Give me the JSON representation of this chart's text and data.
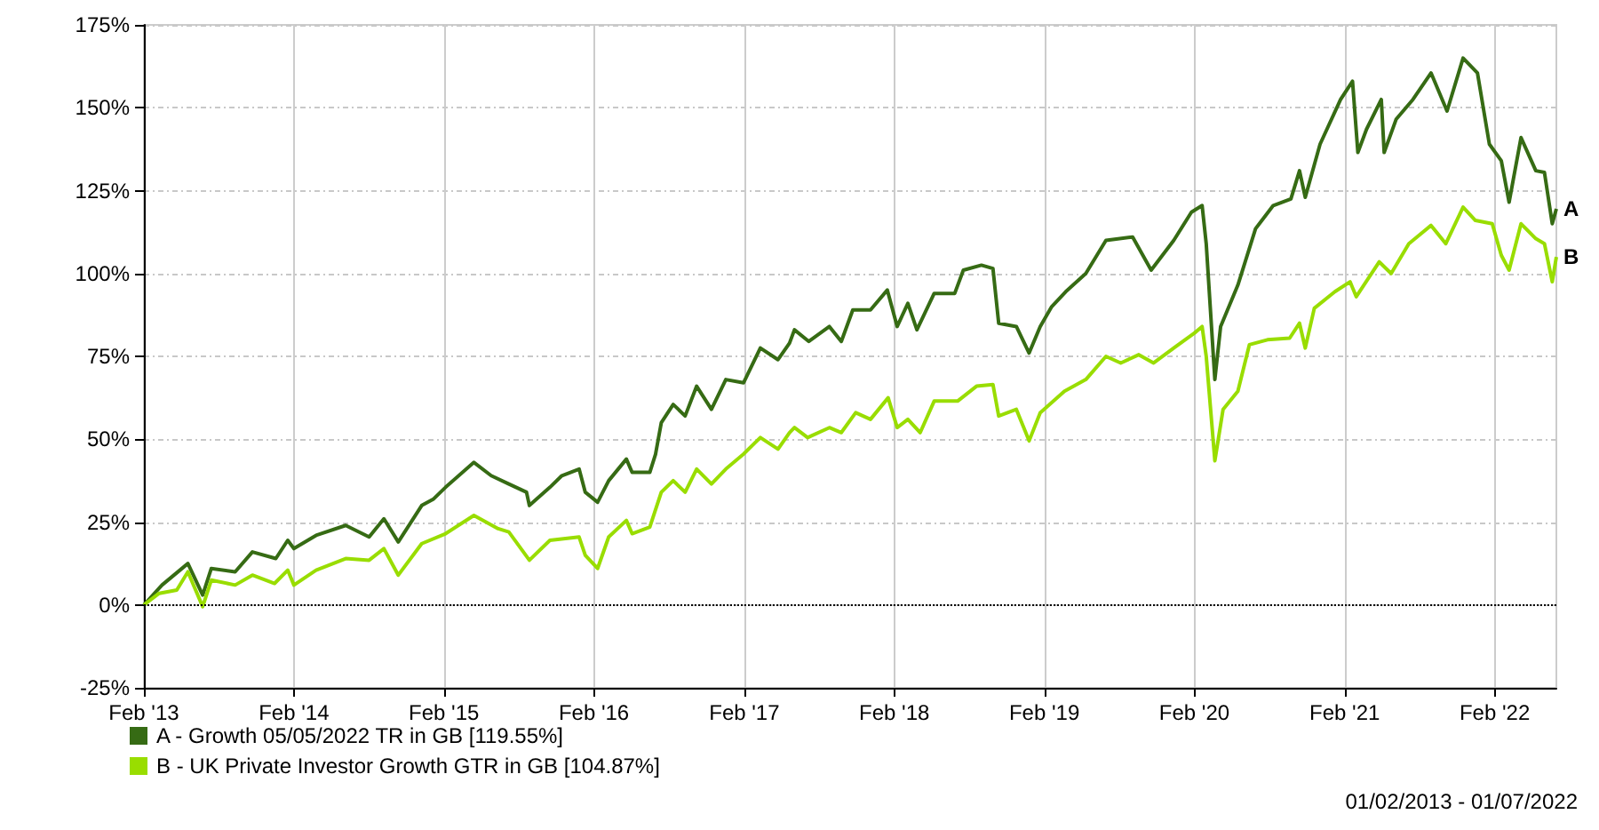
{
  "chart_data": {
    "type": "line",
    "series": [
      {
        "name": "A - Growth 05/05/2022 TR in GB [119.55%]",
        "color": "#366b14",
        "x": [
          "2013-02-01",
          "2013-03-17",
          "2013-05-19",
          "2013-06-24",
          "2013-07-15",
          "2013-09-11",
          "2013-10-23",
          "2013-12-19",
          "2014-01-17",
          "2014-02-01",
          "2014-03-27",
          "2014-06-07",
          "2014-08-03",
          "2014-09-08",
          "2014-10-13",
          "2014-12-09",
          "2015-01-07",
          "2015-02-05",
          "2015-04-15",
          "2015-05-27",
          "2015-07-09",
          "2015-08-21",
          "2015-08-28",
          "2015-10-17",
          "2015-11-15",
          "2015-12-27",
          "2016-01-11",
          "2016-02-10",
          "2016-03-08",
          "2016-04-20",
          "2016-05-04",
          "2016-06-16",
          "2016-06-30",
          "2016-07-14",
          "2016-08-12",
          "2016-09-10",
          "2016-10-08",
          "2016-11-13",
          "2016-12-18",
          "2017-01-30",
          "2017-03-12",
          "2017-04-24",
          "2017-05-22",
          "2017-06-03",
          "2017-07-08",
          "2017-08-27",
          "2017-09-25",
          "2017-10-23",
          "2017-12-05",
          "2018-01-15",
          "2018-02-08",
          "2018-03-06",
          "2018-03-28",
          "2018-05-09",
          "2018-06-28",
          "2018-07-19",
          "2018-09-01",
          "2018-09-29",
          "2018-10-13",
          "2018-11-25",
          "2018-12-26",
          "2019-01-22",
          "2019-02-19",
          "2019-03-25",
          "2019-05-13",
          "2019-07-01",
          "2019-09-04",
          "2019-10-19",
          "2019-12-13",
          "2020-01-25",
          "2020-02-20",
          "2020-03-01",
          "2020-03-22",
          "2020-04-05",
          "2020-05-17",
          "2020-06-29",
          "2020-08-11",
          "2020-09-23",
          "2020-10-14",
          "2020-10-28",
          "2020-12-03",
          "2021-01-22",
          "2021-02-20",
          "2021-03-05",
          "2021-03-26",
          "2021-05-01",
          "2021-05-08",
          "2021-06-06",
          "2021-07-17",
          "2021-08-30",
          "2021-10-08",
          "2021-11-16",
          "2021-12-21",
          "2022-01-19",
          "2022-02-17",
          "2022-03-08",
          "2022-04-06",
          "2022-05-12",
          "2022-06-02",
          "2022-06-21",
          "2022-07-01"
        ],
        "values": [
          0,
          6,
          12.5,
          3,
          11,
          10,
          16,
          14,
          19.5,
          17,
          21,
          24,
          20.5,
          26,
          19,
          30,
          32,
          35.5,
          43,
          39,
          36.5,
          34,
          30,
          35.5,
          39,
          41,
          34,
          31,
          37.5,
          44,
          40,
          40,
          45.5,
          55,
          60.5,
          57,
          66,
          59,
          68,
          67,
          77.5,
          74,
          79,
          83,
          79.5,
          84,
          79.5,
          89,
          89,
          95,
          84,
          91,
          83,
          94,
          94,
          101,
          102.5,
          101.5,
          85,
          84,
          76,
          84,
          90,
          94.5,
          100,
          110,
          111,
          101,
          110,
          118.5,
          120.5,
          109,
          68,
          84,
          96.5,
          113.5,
          120.5,
          122.5,
          131,
          123,
          139,
          152.5,
          158,
          136.5,
          143.5,
          152.5,
          136.5,
          146.5,
          152.5,
          160.5,
          149,
          165,
          160.5,
          139,
          134,
          121.5,
          141,
          131,
          130.5,
          115,
          119.5
        ]
      },
      {
        "name": "B - UK Private Investor Growth GTR in GB [104.87%]",
        "color": "#99dd00",
        "x": [
          "2013-02-01",
          "2013-03-10",
          "2013-04-22",
          "2013-05-19",
          "2013-06-24",
          "2013-07-15",
          "2013-09-11",
          "2013-10-23",
          "2013-12-16",
          "2014-01-17",
          "2014-02-01",
          "2014-03-27",
          "2014-06-07",
          "2014-08-03",
          "2014-09-08",
          "2014-10-13",
          "2014-12-09",
          "2015-02-05",
          "2015-04-15",
          "2015-06-13",
          "2015-07-09",
          "2015-08-28",
          "2015-10-17",
          "2015-12-27",
          "2016-01-11",
          "2016-02-10",
          "2016-03-08",
          "2016-04-20",
          "2016-05-04",
          "2016-06-16",
          "2016-07-14",
          "2016-08-12",
          "2016-09-10",
          "2016-10-08",
          "2016-11-13",
          "2016-12-18",
          "2017-01-30",
          "2017-03-12",
          "2017-04-24",
          "2017-05-22",
          "2017-06-03",
          "2017-07-05",
          "2017-08-27",
          "2017-09-25",
          "2017-10-30",
          "2017-12-05",
          "2018-01-17",
          "2018-02-08",
          "2018-03-06",
          "2018-04-05",
          "2018-05-09",
          "2018-07-05",
          "2018-08-20",
          "2018-09-29",
          "2018-10-13",
          "2018-11-25",
          "2018-12-26",
          "2019-01-22",
          "2019-03-22",
          "2019-05-13",
          "2019-07-01",
          "2019-08-06",
          "2019-09-19",
          "2019-10-25",
          "2019-12-13",
          "2020-02-01",
          "2020-02-20",
          "2020-03-01",
          "2020-03-22",
          "2020-04-11",
          "2020-05-17",
          "2020-06-14",
          "2020-07-28",
          "2020-09-20",
          "2020-10-14",
          "2020-10-28",
          "2020-11-19",
          "2021-01-08",
          "2021-02-14",
          "2021-03-01",
          "2021-04-26",
          "2021-05-25",
          "2021-07-07",
          "2021-08-30",
          "2021-10-05",
          "2021-11-16",
          "2021-12-16",
          "2022-01-26",
          "2022-02-17",
          "2022-03-08",
          "2022-04-06",
          "2022-05-12",
          "2022-06-02",
          "2022-06-21",
          "2022-07-01"
        ],
        "values": [
          0,
          3.5,
          4.5,
          10,
          -0.5,
          7.5,
          6,
          9,
          6.5,
          10.5,
          6,
          10.5,
          14,
          13.5,
          17,
          9,
          18.5,
          21.5,
          27,
          23,
          22,
          13.5,
          19.5,
          20.5,
          15,
          11,
          20.5,
          25.5,
          21.5,
          23.5,
          34,
          37.5,
          34,
          41,
          36.5,
          41,
          45.5,
          50.5,
          47,
          52,
          53.5,
          50.5,
          53.5,
          52,
          58,
          56,
          62.5,
          53.5,
          56,
          52,
          61.5,
          61.5,
          66,
          66.5,
          57,
          59,
          49.5,
          58,
          64.5,
          68,
          75,
          73,
          75.5,
          73,
          77.5,
          82,
          84,
          75,
          43.5,
          59,
          64.5,
          78.5,
          80,
          80.5,
          85,
          77.5,
          89.5,
          94.5,
          97.5,
          93,
          103.5,
          100,
          109,
          114.5,
          109,
          120,
          116,
          115,
          105.5,
          101,
          115,
          110.5,
          109,
          97.5,
          105
        ]
      }
    ],
    "xlim": [
      "2013-02-01",
      "2022-07-01"
    ],
    "xticks": [
      {
        "value": "2013-02-01",
        "label": "Feb '13"
      },
      {
        "value": "2014-02-01",
        "label": "Feb '14"
      },
      {
        "value": "2015-02-01",
        "label": "Feb '15"
      },
      {
        "value": "2016-02-01",
        "label": "Feb '16"
      },
      {
        "value": "2017-02-01",
        "label": "Feb '17"
      },
      {
        "value": "2018-02-01",
        "label": "Feb '18"
      },
      {
        "value": "2019-02-01",
        "label": "Feb '19"
      },
      {
        "value": "2020-02-01",
        "label": "Feb '20"
      },
      {
        "value": "2021-02-01",
        "label": "Feb '21"
      },
      {
        "value": "2022-02-01",
        "label": "Feb '22"
      }
    ],
    "ylim": [
      -25,
      175
    ],
    "yticks": [
      {
        "value": -25,
        "label": "-25%"
      },
      {
        "value": 0,
        "label": "0%"
      },
      {
        "value": 25,
        "label": "25%"
      },
      {
        "value": 50,
        "label": "50%"
      },
      {
        "value": 75,
        "label": "75%"
      },
      {
        "value": 100,
        "label": "100%"
      },
      {
        "value": 125,
        "label": "125%"
      },
      {
        "value": 150,
        "label": "150%"
      },
      {
        "value": 175,
        "label": "175%"
      }
    ],
    "ref_lines": [
      {
        "axis": "y",
        "value": 0,
        "label": null,
        "color": "#000000",
        "line_style": "dotted"
      }
    ],
    "annotations": [
      {
        "text": "A",
        "x": "2022-07-01",
        "y": 119.5
      },
      {
        "text": "B",
        "x": "2022-07-01",
        "y": 105
      },
      "01/02/2013 - 01/07/2022"
    ],
    "grid": true,
    "legend": "bottom left",
    "marker": "none",
    "line_style": "solid"
  }
}
